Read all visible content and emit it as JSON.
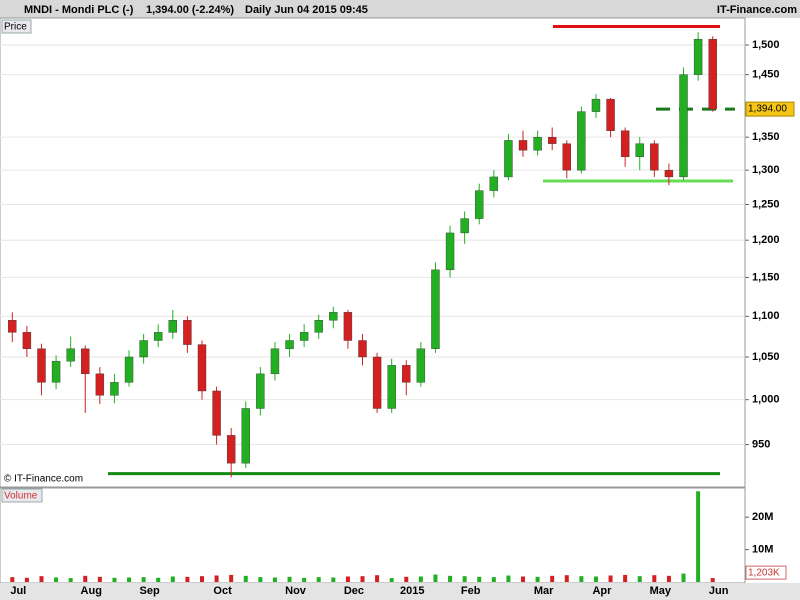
{
  "chart_data": {
    "type": "candlestick",
    "title": "MNDI - Mondi PLC (-)",
    "quote": "1,394.00 (-2.24%)",
    "period": "Daily  Jun 04 2015 09:45",
    "source": "IT-Finance.com",
    "copyright": "© IT-Finance.com",
    "price_label": "Price",
    "volume_label": "Volume",
    "log_scale": true,
    "ylim": [
      905,
      1547
    ],
    "yticks": [
      950,
      {
        "value": 1000,
        "label": "1,000"
      },
      {
        "value": 1050,
        "label": "1,050"
      },
      {
        "value": 1100,
        "label": "1,100"
      },
      {
        "value": 1150,
        "label": "1,150"
      },
      {
        "value": 1200,
        "label": "1,200"
      },
      {
        "value": 1250,
        "label": "1,250"
      },
      {
        "value": 1300,
        "label": "1,300"
      },
      {
        "value": 1350,
        "label": "1,350"
      },
      {
        "value": 1450,
        "label": "1,450"
      },
      {
        "value": 1500,
        "label": "1,500"
      }
    ],
    "grid": true,
    "up_color": "#22b022",
    "down_color": "#d42020",
    "categories": [
      "Jul",
      null,
      null,
      null,
      null,
      "Aug",
      null,
      null,
      null,
      "Sep",
      null,
      null,
      null,
      null,
      "Oct",
      null,
      null,
      null,
      null,
      "Nov",
      null,
      null,
      null,
      "Dec",
      null,
      null,
      null,
      "2015",
      null,
      null,
      null,
      "Feb",
      null,
      null,
      null,
      null,
      "Mar",
      null,
      null,
      null,
      "Apr",
      null,
      null,
      null,
      "May",
      null,
      null,
      null,
      "Jun"
    ],
    "open": [
      1095,
      1080,
      1060,
      1020,
      1045,
      1060,
      1030,
      1005,
      1020,
      1050,
      1070,
      1080,
      1095,
      1065,
      1010,
      960,
      930,
      990,
      1030,
      1060,
      1070,
      1080,
      1095,
      1105,
      1070,
      1050,
      990,
      1040,
      1020,
      1060,
      1160,
      1210,
      1230,
      1270,
      1290,
      1345,
      1330,
      1350,
      1340,
      1300,
      1390,
      1410,
      1360,
      1320,
      1340,
      1300,
      1290,
      1450,
      1510
    ],
    "high": [
      1105,
      1088,
      1066,
      1052,
      1075,
      1064,
      1038,
      1030,
      1058,
      1078,
      1090,
      1108,
      1100,
      1070,
      1015,
      968,
      998,
      1038,
      1068,
      1078,
      1090,
      1102,
      1112,
      1108,
      1078,
      1055,
      1048,
      1046,
      1068,
      1170,
      1220,
      1240,
      1280,
      1300,
      1355,
      1360,
      1360,
      1365,
      1345,
      1398,
      1418,
      1412,
      1365,
      1350,
      1345,
      1310,
      1462,
      1522,
      1515
    ],
    "low": [
      1068,
      1050,
      1005,
      1012,
      1038,
      985,
      995,
      996,
      1015,
      1042,
      1062,
      1072,
      1055,
      1000,
      950,
      915,
      925,
      982,
      1022,
      1050,
      1062,
      1072,
      1085,
      1060,
      1040,
      985,
      985,
      1005,
      1015,
      1055,
      1150,
      1195,
      1222,
      1260,
      1285,
      1320,
      1322,
      1330,
      1288,
      1295,
      1380,
      1350,
      1305,
      1300,
      1290,
      1278,
      1285,
      1440,
      1390
    ],
    "close": [
      1080,
      1060,
      1020,
      1045,
      1060,
      1030,
      1005,
      1020,
      1050,
      1070,
      1080,
      1095,
      1065,
      1010,
      960,
      930,
      990,
      1030,
      1060,
      1070,
      1080,
      1095,
      1105,
      1070,
      1050,
      990,
      1040,
      1020,
      1060,
      1160,
      1210,
      1230,
      1270,
      1290,
      1345,
      1330,
      1350,
      1340,
      1300,
      1390,
      1410,
      1360,
      1320,
      1340,
      1300,
      1290,
      1450,
      1510,
      1394
    ],
    "last_price": {
      "value": 1394,
      "label": "1,394.00"
    },
    "levels": [
      {
        "value": 1532,
        "color": "#e01010",
        "dash": false
      },
      {
        "value": 1394,
        "color": "#1a7a1a",
        "dash": true
      },
      {
        "value": 1284,
        "color": "#66dd55",
        "dash": false
      },
      {
        "value": 919,
        "color": "#128a12",
        "dash": false
      }
    ],
    "volume": [
      1500000,
      1300000,
      1800000,
      1400000,
      1200000,
      1900000,
      1600000,
      1300000,
      1400000,
      1500000,
      1300000,
      1700000,
      1600000,
      1800000,
      2000000,
      2200000,
      1900000,
      1500000,
      1400000,
      1600000,
      1300000,
      1500000,
      1400000,
      1700000,
      1800000,
      2100000,
      1200000,
      1600000,
      1700000,
      2300000,
      1900000,
      1800000,
      1600000,
      1500000,
      2000000,
      1700000,
      1600000,
      1900000,
      2100000,
      1800000,
      1700000,
      2000000,
      2200000,
      1800000,
      2100000,
      1900000,
      2600000,
      28000000,
      1203000
    ],
    "volume_last": {
      "value": 1203000,
      "label": "1,203K"
    },
    "vlim": [
      0,
      29000000
    ],
    "vticks": [
      {
        "value": 10000000,
        "label": "10M"
      },
      {
        "value": 20000000,
        "label": "20M"
      }
    ]
  }
}
